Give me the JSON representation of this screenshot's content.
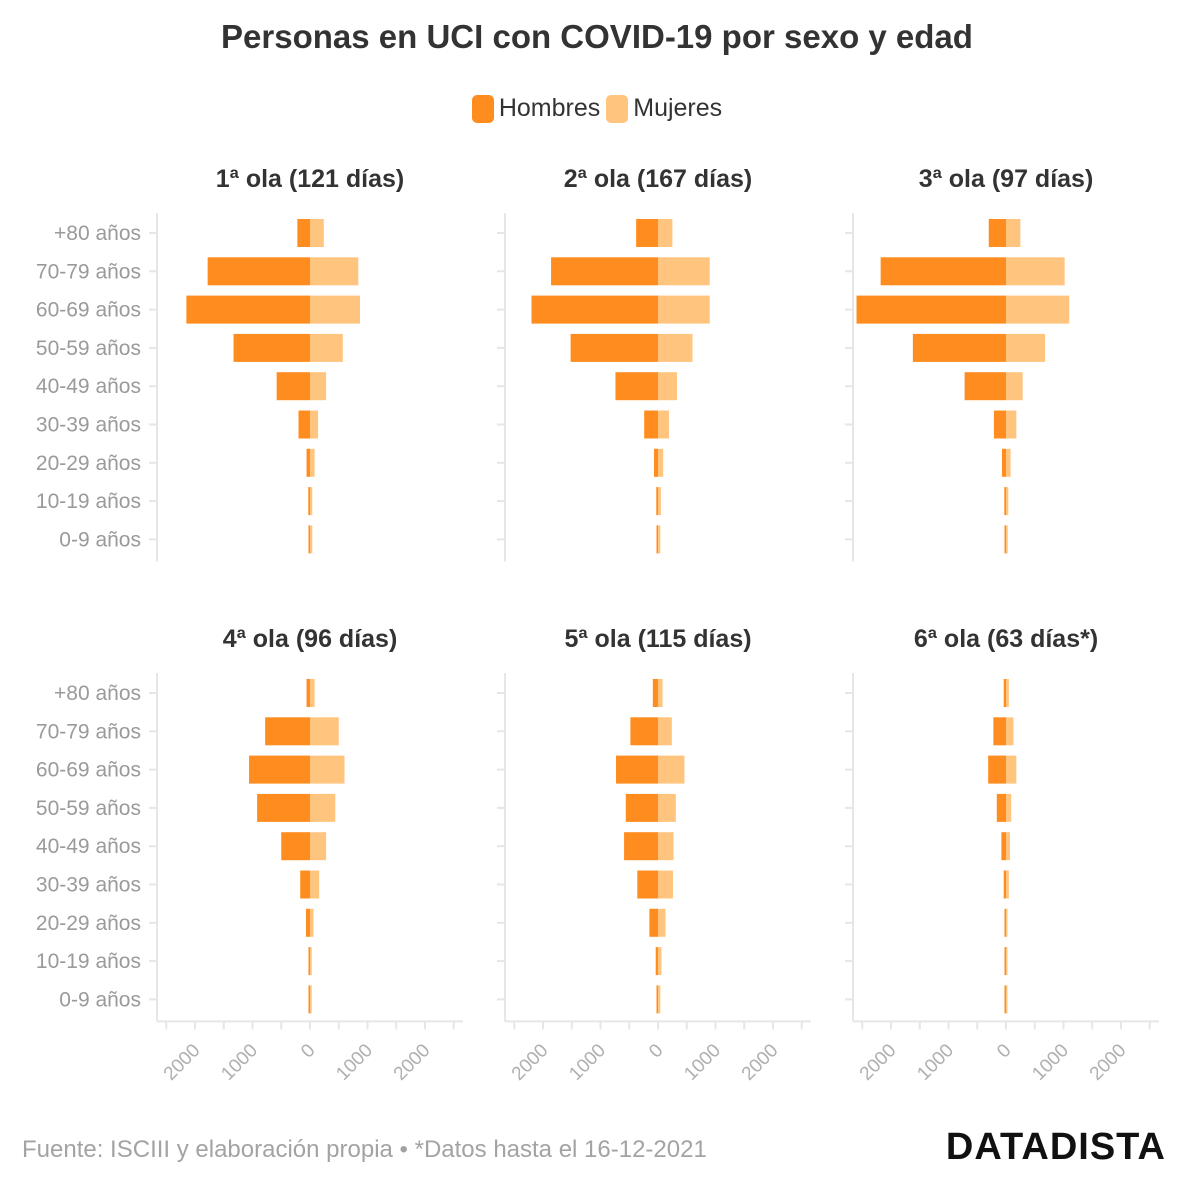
{
  "title": "Personas en UCI con COVID-19 por sexo y edad",
  "legend": {
    "men": "Hombres",
    "women": "Mujeres"
  },
  "colors": {
    "men": "#ff8c1f",
    "women": "#ffc47e",
    "axis": "#e6e6e6",
    "tick_text": "#b0b0b0",
    "label_text": "#9a9a9a"
  },
  "source": "Fuente: ISCIII y elaboración propia • *Datos hasta el 16-12-2021",
  "brand": "DATADISTA",
  "chart_data": {
    "type": "bar",
    "orientation": "horizontal-population-pyramid",
    "categories": [
      "+80 años",
      "70-79 años",
      "60-69 años",
      "50-59 años",
      "40-49 años",
      "30-39 años",
      "20-29 años",
      "10-19 años",
      "0-9 años"
    ],
    "xlim": [
      -2600,
      2600
    ],
    "xticks": [
      -2000,
      -1000,
      0,
      1000,
      2000
    ],
    "xtick_labels": [
      "2000",
      "1000",
      "0",
      "1000",
      "2000"
    ],
    "panels": [
      {
        "title": "1ª ola (121 días)",
        "series": [
          {
            "name": "Hombres",
            "values": [
              220,
              1780,
              2150,
              1330,
              580,
              200,
              60,
              30,
              20
            ]
          },
          {
            "name": "Mujeres",
            "values": [
              240,
              840,
              870,
              570,
              280,
              140,
              80,
              40,
              40
            ]
          }
        ]
      },
      {
        "title": "2ª ola (167 días)",
        "series": [
          {
            "name": "Hombres",
            "values": [
              380,
              1860,
              2200,
              1520,
              740,
              240,
              70,
              30,
              20
            ]
          },
          {
            "name": "Mujeres",
            "values": [
              250,
              900,
              900,
              600,
              330,
              190,
              90,
              50,
              40
            ]
          }
        ]
      },
      {
        "title": "3ª ola (97 días)",
        "series": [
          {
            "name": "Hombres",
            "values": [
              300,
              2180,
              2600,
              1620,
              720,
              210,
              70,
              30,
              20
            ]
          },
          {
            "name": "Mujeres",
            "values": [
              250,
              1020,
              1100,
              680,
              290,
              180,
              80,
              40,
              30
            ]
          }
        ]
      },
      {
        "title": "4ª ola (96 días)",
        "series": [
          {
            "name": "Hombres",
            "values": [
              60,
              780,
              1060,
              920,
              500,
              170,
              70,
              20,
              10
            ]
          },
          {
            "name": "Mujeres",
            "values": [
              80,
              500,
              600,
              440,
              280,
              160,
              60,
              30,
              30
            ]
          }
        ]
      },
      {
        "title": "5ª ola (115 días)",
        "series": [
          {
            "name": "Hombres",
            "values": [
              90,
              480,
              730,
              560,
              590,
              360,
              150,
              40,
              20
            ]
          },
          {
            "name": "Mujeres",
            "values": [
              80,
              240,
              460,
              310,
              270,
              260,
              130,
              60,
              40
            ]
          }
        ]
      },
      {
        "title": "6ª ola (63 días*)",
        "series": [
          {
            "name": "Hombres",
            "values": [
              40,
              220,
              310,
              160,
              80,
              40,
              15,
              10,
              5
            ]
          },
          {
            "name": "Mujeres",
            "values": [
              50,
              130,
              180,
              90,
              70,
              50,
              25,
              15,
              10
            ]
          }
        ]
      }
    ]
  }
}
